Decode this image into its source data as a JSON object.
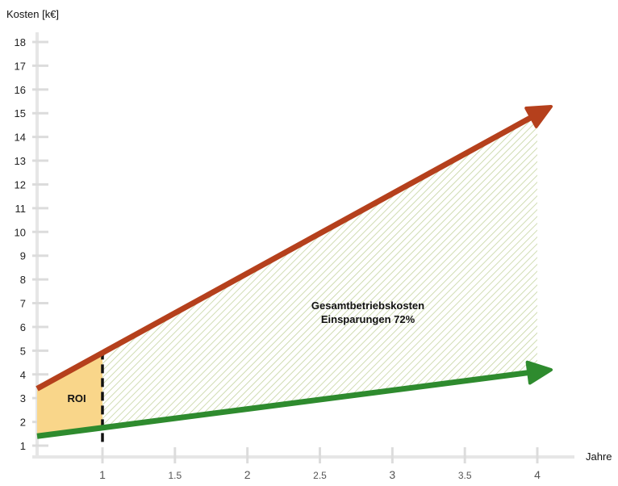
{
  "chart_data": {
    "type": "line",
    "ylabel": "Kosten [k€]",
    "xlabel": "Jahre",
    "xlim": [
      0.55,
      4.1
    ],
    "ylim": [
      0.9,
      18.4
    ],
    "x_ticks": [
      {
        "value": 1,
        "label": "1",
        "major": true
      },
      {
        "value": 1.5,
        "label": "1.5",
        "major": false
      },
      {
        "value": 2,
        "label": "2",
        "major": true
      },
      {
        "value": 2.5,
        "label": "2.5",
        "major": false
      },
      {
        "value": 3,
        "label": "3",
        "major": true
      },
      {
        "value": 3.5,
        "label": "3.5",
        "major": false
      },
      {
        "value": 4,
        "label": "4",
        "major": true
      }
    ],
    "y_ticks": [
      1,
      2,
      3,
      4,
      5,
      6,
      7,
      8,
      9,
      10,
      11,
      12,
      13,
      14,
      15,
      16,
      17,
      18
    ],
    "series": [
      {
        "x": [
          0.55,
          4.1
        ],
        "values": [
          3.4,
          15.3
        ],
        "color": "#b5401c"
      },
      {
        "x": [
          0.55,
          4.1
        ],
        "values": [
          1.4,
          4.2
        ],
        "color": "#2e8b2e"
      }
    ],
    "break_even_x": 1,
    "roi_label": "ROI",
    "savings_label_line1": "Gesamtbetriebskosten",
    "savings_label_line2": "Einsparungen 72%",
    "roi_fill_color": "#f9d68a",
    "hatch_color": "#c5d4a0"
  }
}
